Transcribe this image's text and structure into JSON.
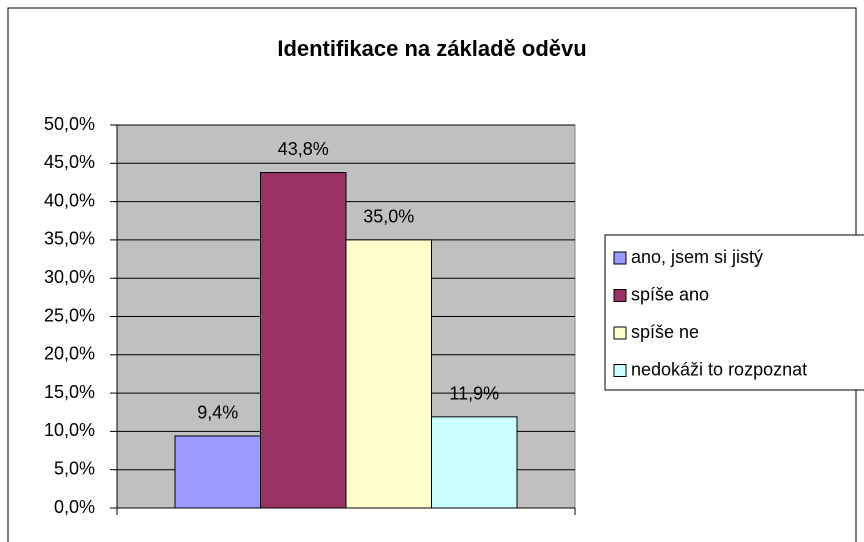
{
  "chart_data": {
    "type": "bar",
    "title": "Identifikace na základě oděvu",
    "categories": [
      null
    ],
    "series": [
      {
        "name": "ano, jsem si jistý",
        "color": "#9999ff",
        "values": [
          9.4
        ],
        "value_labels": [
          "9,4%"
        ]
      },
      {
        "name": "spíše ano",
        "color": "#993366",
        "values": [
          43.8
        ],
        "value_labels": [
          "43,8%"
        ]
      },
      {
        "name": "spíše ne",
        "color": "#ffffcc",
        "values": [
          35.0
        ],
        "value_labels": [
          "35,0%"
        ]
      },
      {
        "name": "nedokáži to rozpoznat",
        "color": "#ccffff",
        "values": [
          11.9
        ],
        "value_labels": [
          "11,9%"
        ]
      }
    ],
    "ylim": [
      0,
      50
    ],
    "yticks": [
      {
        "value": 0,
        "label": "0,0%"
      },
      {
        "value": 5,
        "label": "5,0%"
      },
      {
        "value": 10,
        "label": "10,0%"
      },
      {
        "value": 15,
        "label": "15,0%"
      },
      {
        "value": 20,
        "label": "20,0%"
      },
      {
        "value": 25,
        "label": "25,0%"
      },
      {
        "value": 30,
        "label": "30,0%"
      },
      {
        "value": 35,
        "label": "35,0%"
      },
      {
        "value": 40,
        "label": "40,0%"
      },
      {
        "value": 45,
        "label": "45,0%"
      },
      {
        "value": 50,
        "label": "50,0%"
      }
    ],
    "grid": true,
    "legend": "right",
    "plot_background": "#c0c0c0"
  }
}
